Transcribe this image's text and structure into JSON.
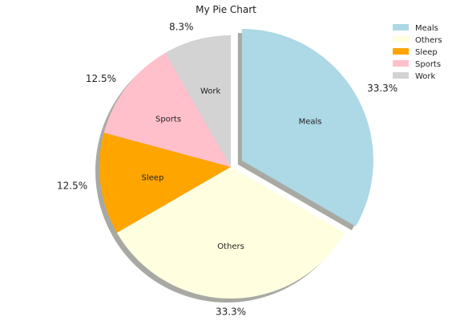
{
  "chart_data": {
    "type": "pie",
    "title": "My Pie Chart",
    "start_angle_deg": 90,
    "direction": "clockwise",
    "shadow": true,
    "legend_position": "top-right",
    "slices": [
      {
        "label": "Meals",
        "value": 33.3,
        "pct_label": "33.3%",
        "color": "#add8e6",
        "explode": true
      },
      {
        "label": "Others",
        "value": 33.3,
        "pct_label": "33.3%",
        "color": "#ffffe0",
        "explode": false
      },
      {
        "label": "Sleep",
        "value": 12.5,
        "pct_label": "12.5%",
        "color": "#ffa500",
        "explode": false
      },
      {
        "label": "Sports",
        "value": 12.5,
        "pct_label": "12.5%",
        "color": "#ffc0cb",
        "explode": false
      },
      {
        "label": "Work",
        "value": 8.3,
        "pct_label": "8.3%",
        "color": "#d3d3d3",
        "explode": false
      }
    ]
  }
}
